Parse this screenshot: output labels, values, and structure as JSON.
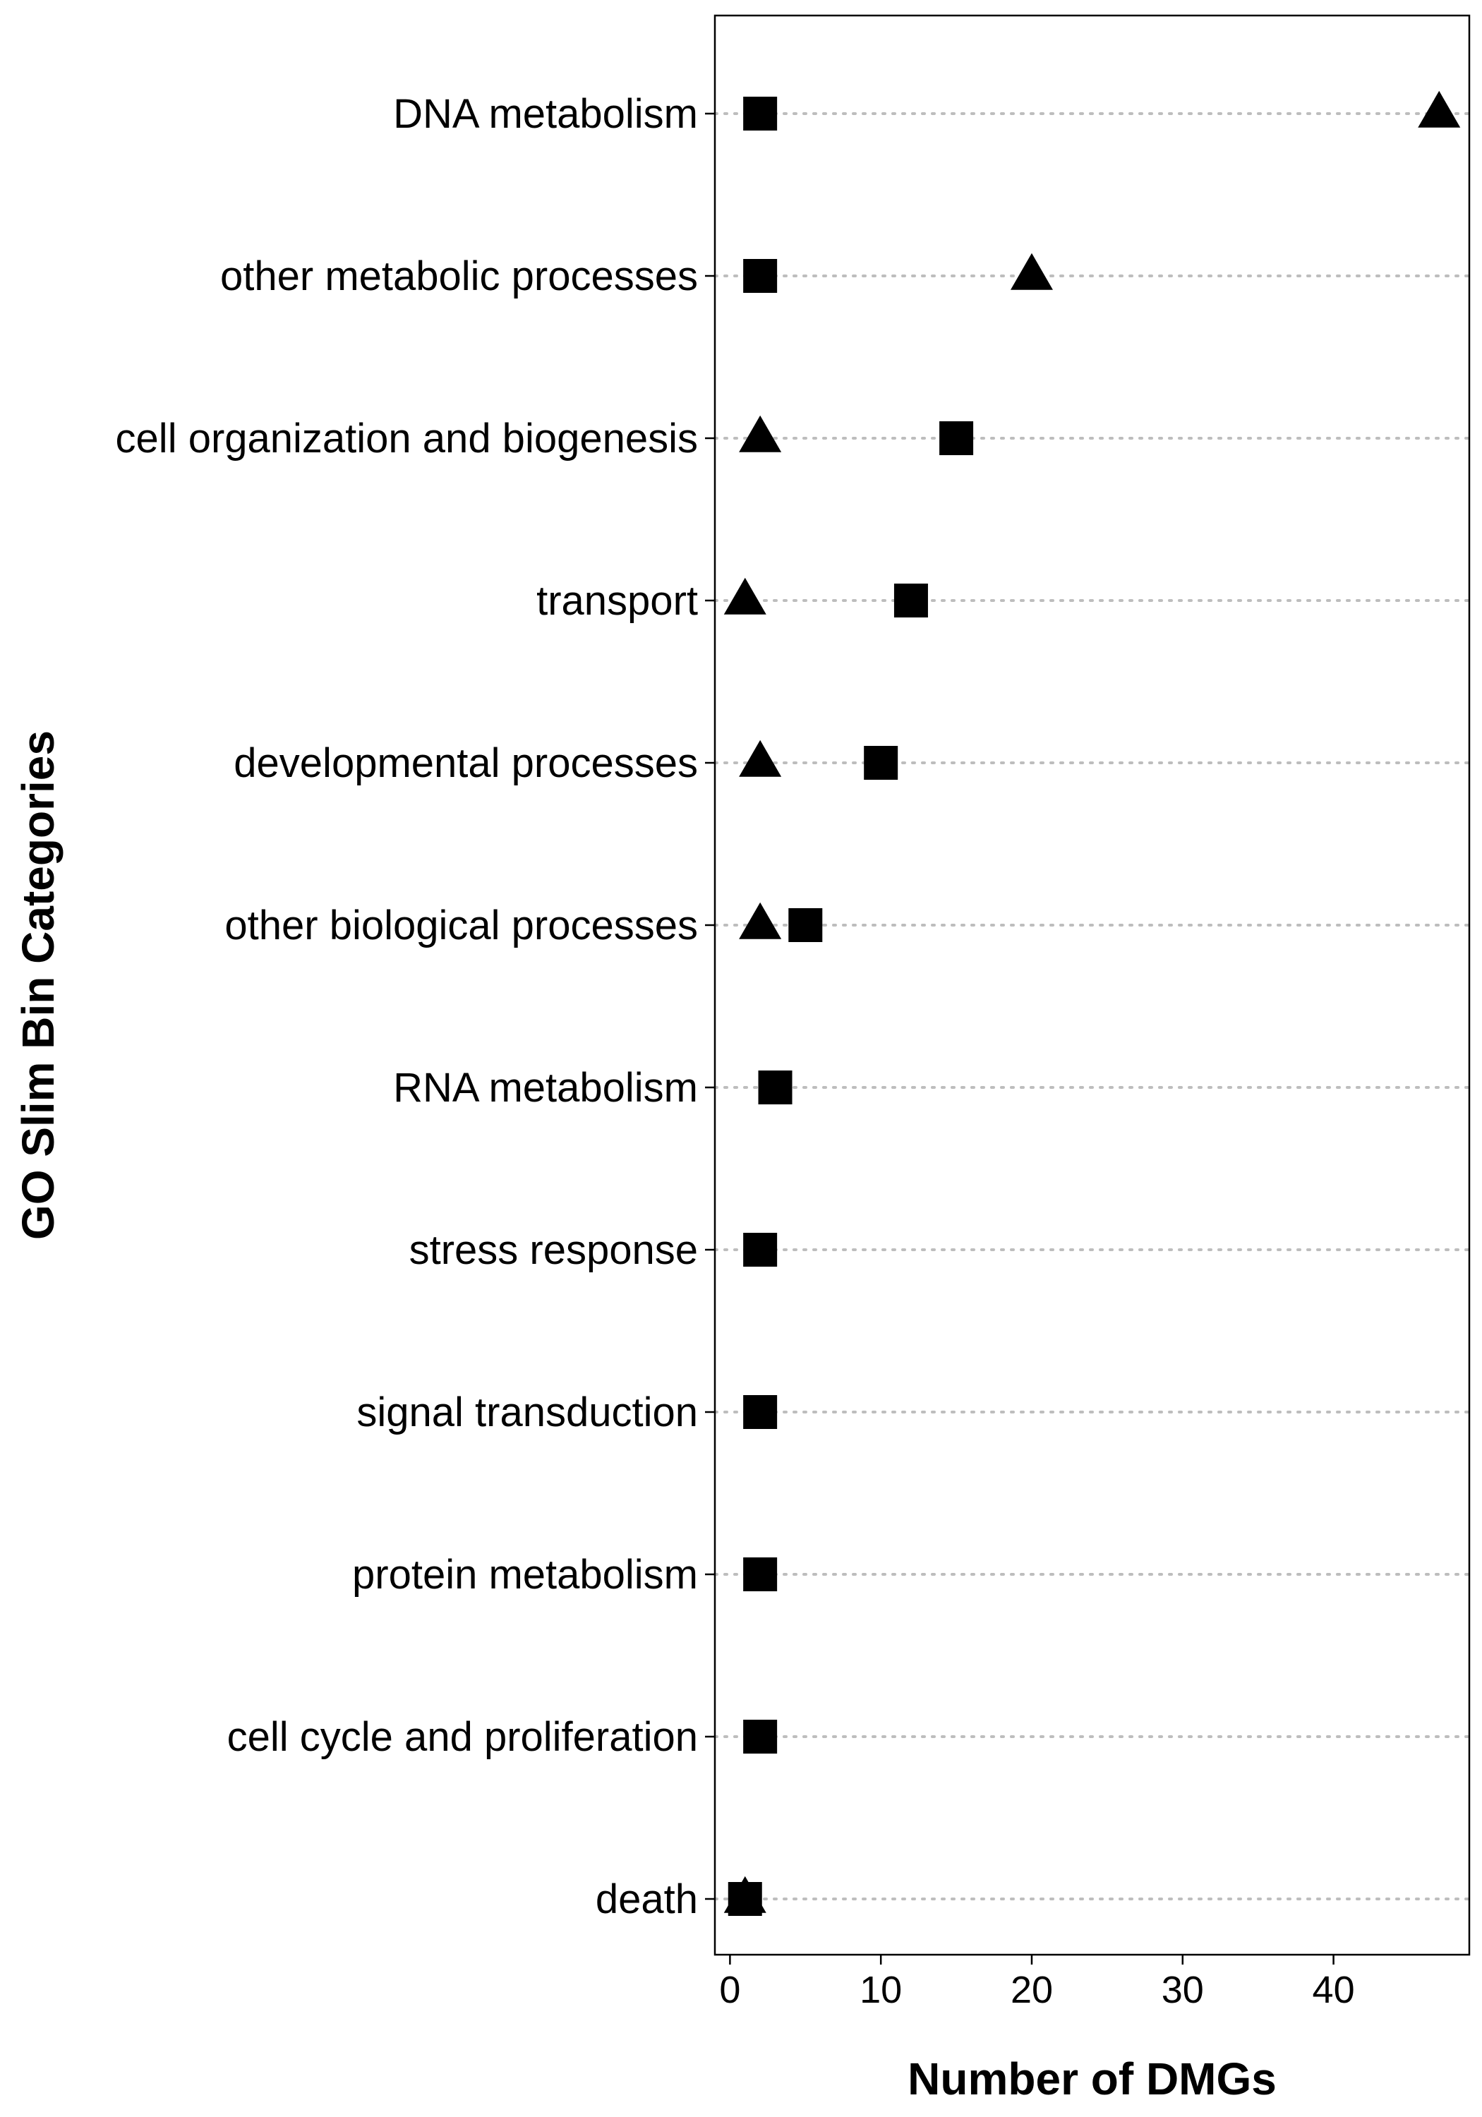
{
  "chart_data": {
    "type": "scatter",
    "title": "",
    "xlabel": "Number of DMGs",
    "ylabel": "GO Slim Bin Categories",
    "xlim": [
      -1,
      49
    ],
    "xticks": [
      0,
      10,
      20,
      30,
      40
    ],
    "grid": "horizontal dotted",
    "legend": "none",
    "categories": [
      "DNA metabolism",
      "other metabolic processes",
      "cell organization and biogenesis",
      "transport",
      "developmental processes",
      "other biological processes",
      "RNA metabolism",
      "stress response",
      "signal transduction",
      "protein metabolism",
      "cell cycle and proliferation",
      "death"
    ],
    "series": [
      {
        "marker": "square",
        "values": [
          2,
          2,
          15,
          12,
          10,
          5,
          3,
          2,
          2,
          2,
          2,
          1
        ]
      },
      {
        "marker": "triangle",
        "values": [
          47,
          20,
          2,
          1,
          2,
          2,
          null,
          null,
          null,
          null,
          null,
          1
        ]
      }
    ],
    "colors": {
      "marker": "#000000",
      "grid": "#bdbdbd",
      "axis": "#000000"
    }
  }
}
